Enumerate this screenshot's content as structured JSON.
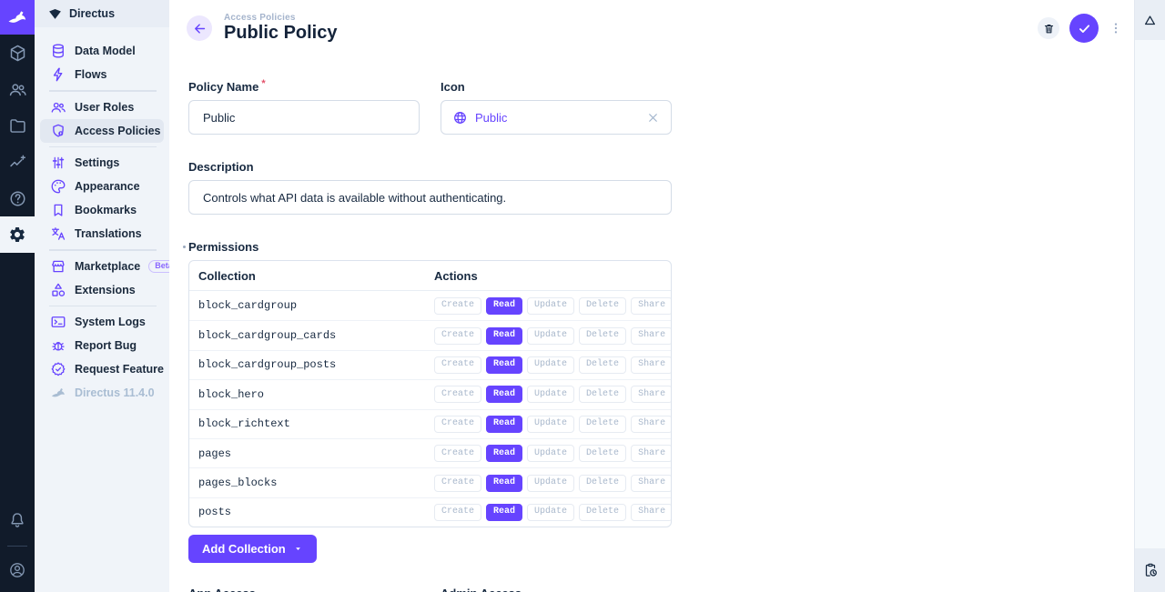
{
  "colors": {
    "primary": "#6644ff",
    "module_bar_bg": "#111b2a",
    "sidebar_bg": "#f0f4f9",
    "text_dark": "#172940",
    "text_subdued": "#a2b5cd"
  },
  "module_bar": {
    "modules": [
      "directus-logo",
      "content",
      "users",
      "files",
      "insights",
      "help",
      "settings"
    ],
    "active_module": "settings",
    "bottom": [
      "notifications",
      "user-avatar"
    ]
  },
  "sidebar": {
    "project_name": "Directus",
    "items": [
      {
        "label": "Data Model",
        "icon": "database"
      },
      {
        "label": "Flows",
        "icon": "bolt"
      },
      {
        "label": "User Roles",
        "icon": "people"
      },
      {
        "label": "Access Policies",
        "icon": "shield-lock",
        "active": true
      },
      {
        "label": "Settings",
        "icon": "tune"
      },
      {
        "label": "Appearance",
        "icon": "palette"
      },
      {
        "label": "Bookmarks",
        "icon": "bookmark"
      },
      {
        "label": "Translations",
        "icon": "translate"
      },
      {
        "label": "Marketplace",
        "icon": "storefront",
        "badge": "Beta"
      },
      {
        "label": "Extensions",
        "icon": "category"
      },
      {
        "label": "System Logs",
        "icon": "terminal"
      },
      {
        "label": "Report Bug",
        "icon": "bug"
      },
      {
        "label": "Request Feature",
        "icon": "verified"
      }
    ],
    "version": "Directus 11.4.0"
  },
  "header": {
    "breadcrumb": "Access Policies",
    "title": "Public Policy",
    "actions": [
      "delete",
      "save",
      "more-options"
    ]
  },
  "form": {
    "required_marker": "*",
    "policy_name": {
      "label": "Policy Name",
      "value": "Public"
    },
    "icon_field": {
      "label": "Icon",
      "value": "Public",
      "icon": "globe"
    },
    "description": {
      "label": "Description",
      "value": "Controls what API data is available without authenticating."
    },
    "permissions": {
      "label": "Permissions",
      "columns": [
        "Collection",
        "Actions"
      ],
      "actions": [
        "Create",
        "Read",
        "Update",
        "Delete",
        "Share"
      ],
      "active_action": "Read",
      "rows": [
        "block_cardgroup",
        "block_cardgroup_cards",
        "block_cardgroup_posts",
        "block_hero",
        "block_richtext",
        "pages",
        "pages_blocks",
        "posts"
      ],
      "add_button": "Add Collection"
    },
    "app_access_label": "App Access",
    "admin_access_label": "Admin Access"
  },
  "right_rail": {
    "top_icon": "change-history",
    "bottom_icon": "pending-actions"
  }
}
